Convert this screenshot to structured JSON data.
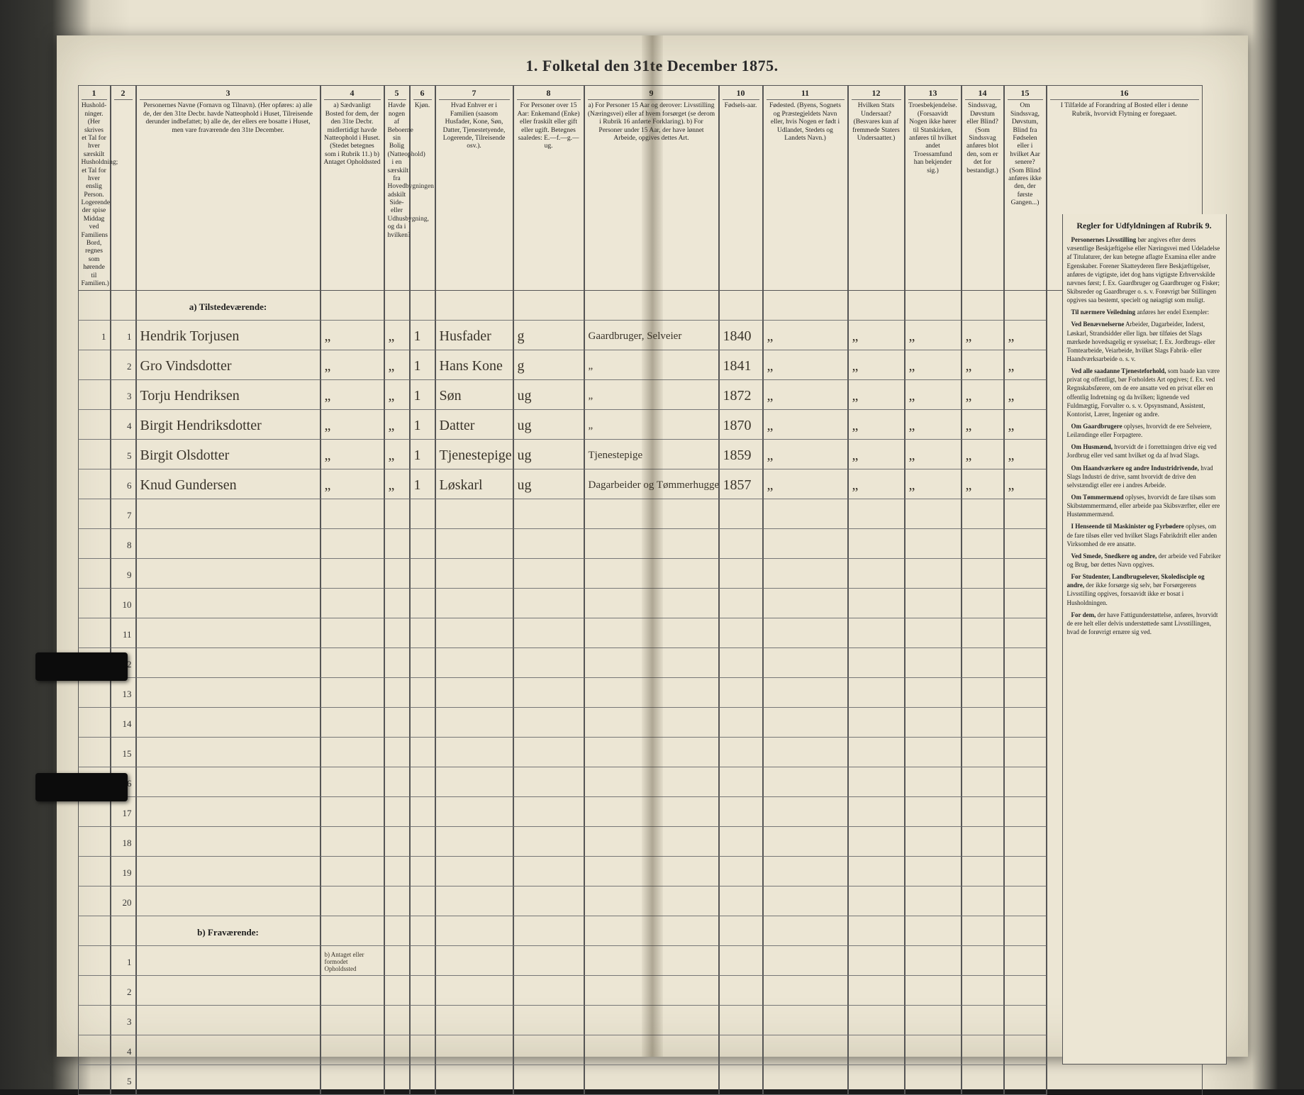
{
  "title": "1. Folketal den 31te December 1875.",
  "columns": [
    {
      "num": "1",
      "text": "Hushold-ninger. (Her skrives et Tal for hver særskilt Husholdning; et Tal for hver enslig Person. Logerende, der spise Middag ved Familiens Bord, regnes som hørende til Familien.)"
    },
    {
      "num": "2",
      "text": ""
    },
    {
      "num": "3",
      "text": "Personernes Navne (Fornavn og Tilnavn). (Her opføres: a) alle de, der den 31te Decbr. havde Natteophold i Huset, Tilreisende derunder indbefattet; b) alle de, der ellers ere bosatte i Huset, men vare fraværende den 31te December."
    },
    {
      "num": "4",
      "text": "a) Sædvanligt Bosted for dem, der den 31te Decbr. midlertidigt havde Natteophold i Huset. (Stedet betegnes som i Rubrik 11.) b) Antaget Opholdssted"
    },
    {
      "num": "5",
      "text": "Havde nogen af Beboerne sin Bolig (Natteophold) i en særskilt fra Hovedbygningen adskilt Side- eller Udhusbygning, og da i hvilken?"
    },
    {
      "num": "6",
      "text": "Kjøn."
    },
    {
      "num": "7",
      "text": "Hvad Enhver er i Familien (saasom Husfader, Kone, Søn, Datter, Tjenestetyende, Logerende, Tilreisende osv.)."
    },
    {
      "num": "8",
      "text": "For Personer over 15 Aar: Enkemand (Enke) eller fraskilt eller gift eller ugift. Betegnes saaledes: E.—f.—g.—ug."
    },
    {
      "num": "9",
      "text": "a) For Personer 15 Aar og derover: Livsstilling (Næringsvei) eller af hvem forsørget (se derom i Rubrik 16 anførte Forklaring). b) For Personer under 15 Aar, der have lønnet Arbeide, opgives dettes Art."
    },
    {
      "num": "10",
      "text": "Fødsels-aar."
    },
    {
      "num": "11",
      "text": "Fødested. (Byens, Sognets og Præstegjeldets Navn eller, hvis Nogen er født i Udlandet, Stedets og Landets Navn.)"
    },
    {
      "num": "12",
      "text": "Hvilken Stats Undersaat? (Besvares kun af fremmede Staters Undersaatter.)"
    },
    {
      "num": "13",
      "text": "Troesbekjendelse. (Forsaavidt Nogen ikke hører til Statskirken, anføres til hvilket andet Troessamfund han bekjender sig.)"
    },
    {
      "num": "14",
      "text": "Sindssvag, Døvstum eller Blind? (Som Sindssvag anføres blot den, som er det for bestandigt.)"
    },
    {
      "num": "15",
      "text": "Om Sindssvag, Døvstum, Blind fra Fødselen eller i hvilket Aar senere? (Som Blind anføres ikke den, der første Gangen...)"
    },
    {
      "num": "16",
      "text": "I Tilfælde af Forandring af Bosted eller i denne Rubrik, hvorvidt Flytning er foregaaet."
    }
  ],
  "section_a": "a) Tilstedeværende:",
  "section_b": "b) Fraværende:",
  "entries": [
    {
      "hh": "1",
      "pn": "1",
      "name": "Hendrik Torjusen",
      "c4": "„",
      "c5": "„",
      "c6": "1",
      "role": "Husfader",
      "stat": "g",
      "occ": "Gaardbruger, Selveier",
      "year": "1840",
      "c11": "„",
      "c12": "„",
      "c13": "„",
      "c14": "„",
      "c15": "„"
    },
    {
      "hh": "",
      "pn": "2",
      "name": "Gro Vindsdotter",
      "c4": "„",
      "c5": "„",
      "c6": "1",
      "role": "Hans Kone",
      "stat": "g",
      "occ": "„",
      "year": "1841",
      "c11": "„",
      "c12": "„",
      "c13": "„",
      "c14": "„",
      "c15": "„"
    },
    {
      "hh": "",
      "pn": "3",
      "name": "Torju Hendriksen",
      "c4": "„",
      "c5": "„",
      "c6": "1",
      "role": "Søn",
      "stat": "ug",
      "occ": "„",
      "year": "1872",
      "c11": "„",
      "c12": "„",
      "c13": "„",
      "c14": "„",
      "c15": "„"
    },
    {
      "hh": "",
      "pn": "4",
      "name": "Birgit Hendriksdotter",
      "c4": "„",
      "c5": "„",
      "c6": "1",
      "role": "Datter",
      "stat": "ug",
      "occ": "„",
      "year": "1870",
      "c11": "„",
      "c12": "„",
      "c13": "„",
      "c14": "„",
      "c15": "„"
    },
    {
      "hh": "",
      "pn": "5",
      "name": "Birgit Olsdotter",
      "c4": "„",
      "c5": "„",
      "c6": "1",
      "role": "Tjenestepige",
      "stat": "ug",
      "occ": "Tjenestepige",
      "year": "1859",
      "c11": "„",
      "c12": "„",
      "c13": "„",
      "c14": "„",
      "c15": "„"
    },
    {
      "hh": "",
      "pn": "6",
      "name": "Knud Gundersen",
      "c4": "„",
      "c5": "„",
      "c6": "1",
      "role": "Løskarl",
      "stat": "ug",
      "occ": "Dagarbeider og Tømmerhugger",
      "year": "1857",
      "c11": "„",
      "c12": "„",
      "c13": "„",
      "c14": "„",
      "c15": "„"
    }
  ],
  "blank_a": [
    7,
    8,
    9,
    10,
    11,
    12,
    13,
    14,
    15,
    16,
    17,
    18,
    19,
    20
  ],
  "blank_b": [
    1,
    2,
    3,
    4,
    5
  ],
  "rules": {
    "heading": "Regler for Udfyldningen af Rubrik 9.",
    "paras": [
      {
        "lead": "Personernes Livsstilling",
        "body": " bør angives efter deres væsentlige Beskjæftigelse eller Næringsvei med Udeladelse af Titulaturer, der kun betegne aflagte Examina eller andre Egenskaber. Forener Skatteyderen flere Beskjæftigelser, anføres de vigtigste, idet dog hans vigtigste Erhvervskilde nævnes først; f. Ex. Gaardbruger og Gaardbruger og Fisker; Skibsreder og Gaardbruger o. s. v. Forøvrigt bør Stillingen opgives saa bestemt, specielt og nøiagtigt som muligt."
      },
      {
        "lead": "Til nærmere Veiledning",
        "body": " anføres her endel Exempler:"
      },
      {
        "lead": "Ved Benævnelserne",
        "body": " Arbeider, Dagarbeider, Inderst, Løskarl, Strandsidder eller lign. bør tilføies det Slags mærkede hovedsagelig er sysselsat; f. Ex. Jordbrugs- eller Tomtearbeide, Veiarbeide, hvilket Slags Fabrik- eller Haandværksarbeide o. s. v."
      },
      {
        "lead": "Ved alle saadanne Tjenesteforhold,",
        "body": " som baade kan være privat og offentligt, bør Forholdets Art opgives; f. Ex. ved Regnskabsførere, om de ere ansatte ved en privat eller en offentlig Indretning og da hvilken; lignende ved Fuldmægtig, Forvalter o. s. v. Opsynsmand, Assistent, Kontorist, Lærer, Ingeniør og andre."
      },
      {
        "lead": "Om Gaardbrugere",
        "body": " oplyses, hvorvidt de ere Selveiere, Leilændinge eller Forpagtere."
      },
      {
        "lead": "Om Husmænd,",
        "body": " hvorvidt de i forrettningen drive eig ved Jordbrug eller ved samt hvilket og da af hvad Slags."
      },
      {
        "lead": "Om Haandværkere og andre Industridrivende,",
        "body": " hvad Slags Industri de drive, samt hvorvidt de drive den selvstændigt eller ere i andres Arbeide."
      },
      {
        "lead": "Om Tømmermænd",
        "body": " oplyses, hvorvidt de fare tilsøs som Skibstømmermænd, eller arbeide paa Skibsværfter, eller ere Hustømmermænd."
      },
      {
        "lead": "I Henseende til Maskinister og Fyrbødere",
        "body": " oplyses, om de fare tilsøs eller ved hvilket Slags Fabrikdrift eller anden Virksomhed de ere ansatte."
      },
      {
        "lead": "Ved Smede, Snedkere og andre,",
        "body": " der arbeide ved Fabriker og Brug, bør dettes Navn opgives."
      },
      {
        "lead": "For Studenter, Landbrugselever, Skoledisciple og andre,",
        "body": " der ikke forsørge sig selv, bør Forsørgerens Livsstilling opgives, forsaavidt ikke er bosat i Husholdningen."
      },
      {
        "lead": "For dem,",
        "body": " der have Fattigunderstøttelse, anføres, hvorvidt de ere helt eller delvis understøttede samt Livsstillingen, hvad de forøvrigt ernære sig ved."
      }
    ]
  },
  "colors": {
    "paper": "#ece6d4",
    "ink": "#2a2a2a",
    "rule": "#555555",
    "script": "#3a342a"
  }
}
